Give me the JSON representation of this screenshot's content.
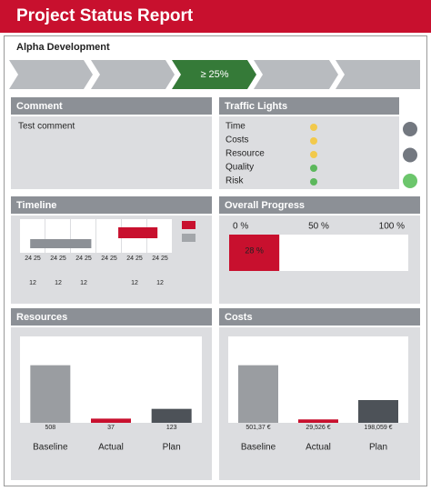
{
  "header": {
    "title": "Project Status Report"
  },
  "project": "Alpha Development",
  "stage": {
    "label": "≥ 25%"
  },
  "comment": {
    "title": "Comment",
    "text": "Test comment"
  },
  "traffic_lights": {
    "title": "Traffic Lights",
    "items": [
      {
        "label": "Time",
        "color": "#f2c94c"
      },
      {
        "label": "Costs",
        "color": "#f2c94c"
      },
      {
        "label": "Resource",
        "color": "#f2c94c"
      },
      {
        "label": "Quality",
        "color": "#5cb85c"
      },
      {
        "label": "Risk",
        "color": "#5cb85c"
      }
    ],
    "indicators": [
      "#737880",
      "#737880",
      "#6cc66c"
    ]
  },
  "timeline": {
    "title": "Timeline",
    "columns": [
      "24 25",
      "24 25",
      "24 25",
      "24 25",
      "24 25",
      "24 25"
    ],
    "sublabels": [
      "12",
      "12",
      "12",
      null,
      "12",
      "12"
    ],
    "bars": [
      {
        "color": "#8c9096",
        "start": 0.4,
        "end": 2.8
      },
      {
        "color": "#c8102e",
        "start": 3.86,
        "end": 5.4
      }
    ],
    "legend_colors": [
      "#c8102e",
      "#a3a6aa"
    ]
  },
  "overall_progress": {
    "title": "Overall Progress",
    "ticks": [
      {
        "value": 0,
        "label": "0 %"
      },
      {
        "value": 50,
        "label": "50 %"
      },
      {
        "value": 100,
        "label": "100 %"
      }
    ],
    "value": 28,
    "value_label": "28 %",
    "color": "#c8102e"
  },
  "resources": {
    "title": "Resources",
    "type": "bar",
    "categories": [
      "Baseline",
      "Actual",
      "Plan"
    ],
    "values": [
      508,
      37,
      123
    ],
    "colors": [
      "#9a9da1",
      "#c8102e",
      "#4d5258"
    ]
  },
  "costs": {
    "title": "Costs",
    "type": "bar",
    "categories": [
      "Baseline",
      "Actual",
      "Plan"
    ],
    "values": [
      501.37,
      29.526,
      198.059
    ],
    "value_labels": [
      "501,37 €",
      "29,526 €",
      "198,059 €"
    ],
    "colors": [
      "#9a9da1",
      "#c8102e",
      "#4d5258"
    ]
  }
}
